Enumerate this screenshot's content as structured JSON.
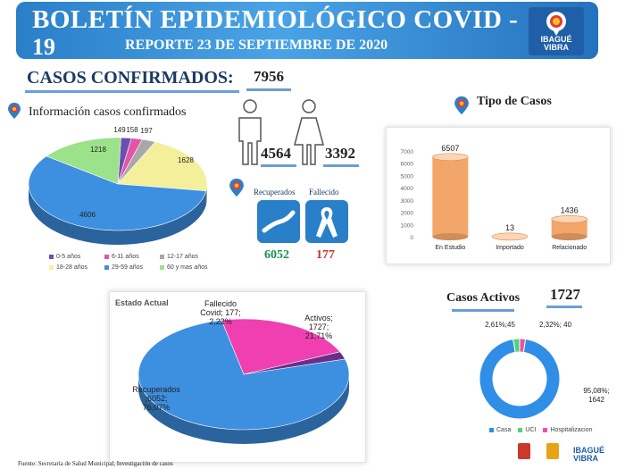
{
  "header": {
    "title": "BOLETÍN EPIDEMIOLÓGICO COVID -",
    "title_cont": "19",
    "subtitle": "REPORTE 23 DE SEPTIEMBRE DE 2020",
    "logo_text": "IBAGUÉ VIBRA"
  },
  "confirmados": {
    "label": "CASOS CONFIRMADOS:",
    "total": "7956",
    "hombres": "4564",
    "mujeres": "3392"
  },
  "info_title": "Información casos confirmados",
  "tipo_title": "Tipo de Casos",
  "recuperados": {
    "label": "Recuperados",
    "value": "6052"
  },
  "fallecido": {
    "label": "Fallecido",
    "value": "177"
  },
  "activos": {
    "title": "Casos Activos",
    "total": "1727"
  },
  "footer": {
    "source": "Fuente: Secretaría de Salud Municipal, Investigación de casos"
  },
  "colors": {
    "header": "#2a7fc9",
    "accent": "#1b3a66",
    "recuperados_value": "#1e8f4e",
    "fallecido_value": "#c0392b"
  },
  "icons": [
    "location-pin-icon",
    "male-icon",
    "female-icon",
    "trend-up-icon",
    "ribbon-icon"
  ],
  "chart_data": [
    {
      "type": "pie",
      "labels": [
        "0-5 años",
        "6-11 años",
        "12-17 años",
        "18-28 años",
        "29-59 años",
        "60 y mas años"
      ],
      "values": [
        149,
        158,
        197,
        1628,
        4606,
        1218
      ],
      "colors": [
        "#6a4fb0",
        "#e255a8",
        "#a8a8a8",
        "#f3ef9b",
        "#3d8fe0",
        "#9be28a"
      ],
      "legend": "bottom"
    },
    {
      "type": "bar",
      "categories": [
        "En Estudio",
        "Importado",
        "Relacionado"
      ],
      "values": [
        6507,
        13,
        1436
      ],
      "ylim": [
        0,
        7000
      ],
      "yticks": [
        0,
        1000,
        2000,
        3000,
        4000,
        5000,
        6000,
        7000
      ],
      "color": "#f2a66a"
    },
    {
      "type": "pie",
      "title": "Estado Actual",
      "slices": [
        {
          "name": "Recuperados",
          "value": 6052,
          "pct": "76,07%",
          "label": "Recuperados\n;6052;\n76,07%",
          "color": "#3d8fe0"
        },
        {
          "name": "Activos;",
          "value": 1727,
          "pct": "21,71%",
          "label": "Activos;\n1727;\n21,71%",
          "color": "#ef3fb0"
        },
        {
          "name": "Fallecido Covid;",
          "value": 177,
          "pct": "2,22%",
          "label": "Fallecido\nCovid; 177;\n2,22%",
          "color": "#6a2f88"
        }
      ]
    },
    {
      "type": "pie",
      "donut": true,
      "slices": [
        {
          "name": "Casa",
          "value": 1642,
          "label": "95,08%;\n1642",
          "color": "#2f8ee6"
        },
        {
          "name": "UCI",
          "value": 45,
          "label": "2,61%;45",
          "color": "#4fd47a"
        },
        {
          "name": "Hospitalizacion",
          "value": 40,
          "label": "2,32%; 40",
          "color": "#ef4fa8"
        }
      ],
      "legend": "bottom"
    }
  ]
}
